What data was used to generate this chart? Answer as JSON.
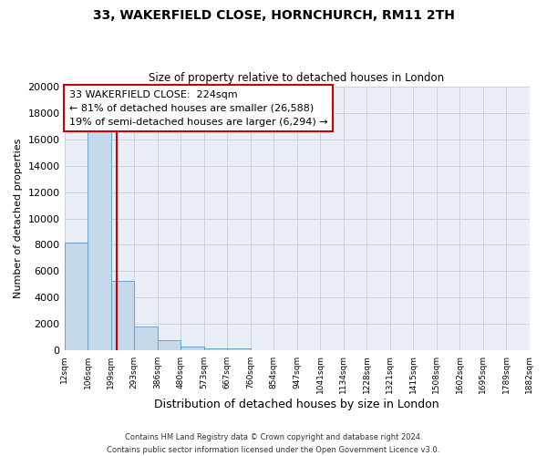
{
  "title": "33, WAKERFIELD CLOSE, HORNCHURCH, RM11 2TH",
  "subtitle": "Size of property relative to detached houses in London",
  "xlabel": "Distribution of detached houses by size in London",
  "ylabel": "Number of detached properties",
  "bar_values": [
    8150,
    16600,
    5300,
    1850,
    800,
    300,
    200,
    150,
    0,
    0,
    0,
    0,
    0,
    0,
    0,
    0,
    0,
    0,
    0,
    0
  ],
  "bar_labels": [
    "12sqm",
    "106sqm",
    "199sqm",
    "293sqm",
    "386sqm",
    "480sqm",
    "573sqm",
    "667sqm",
    "760sqm",
    "854sqm",
    "947sqm",
    "1041sqm",
    "1134sqm",
    "1228sqm",
    "1321sqm",
    "1415sqm",
    "1508sqm",
    "1602sqm",
    "1695sqm",
    "1789sqm",
    "1882sqm"
  ],
  "ylim": [
    0,
    20000
  ],
  "yticks": [
    0,
    2000,
    4000,
    6000,
    8000,
    10000,
    12000,
    14000,
    16000,
    18000,
    20000
  ],
  "bar_color": "#c5d9ea",
  "bar_edgecolor": "#5b9dc0",
  "grid_color": "#c9d4e0",
  "bg_color": "#eaeff7",
  "red_line_color": "#cc0000",
  "annotation_title": "33 WAKERFIELD CLOSE:  224sqm",
  "annotation_line1": "← 81% of detached houses are smaller (26,588)",
  "annotation_line2": "19% of semi-detached houses are larger (6,294) →",
  "annotation_box_color": "#ffffff",
  "annotation_border_color": "#cc0000",
  "footer_line1": "Contains HM Land Registry data © Crown copyright and database right 2024.",
  "footer_line2": "Contains public sector information licensed under the Open Government Licence v3.0."
}
